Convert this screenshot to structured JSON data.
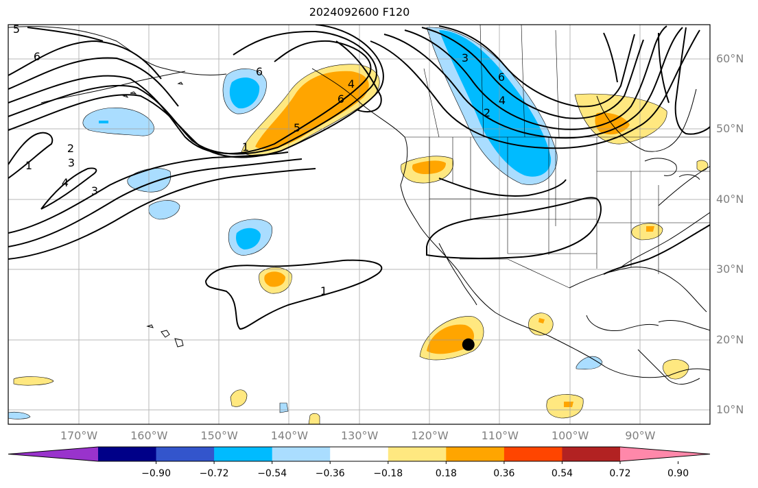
{
  "title": "2024092600 F120",
  "map": {
    "lat_labels": [
      {
        "text": "60°N",
        "lat": 60
      },
      {
        "text": "50°N",
        "lat": 50
      },
      {
        "text": "40°N",
        "lat": 40
      },
      {
        "text": "30°N",
        "lat": 30
      },
      {
        "text": "20°N",
        "lat": 20
      },
      {
        "text": "10°N",
        "lat": 10
      }
    ],
    "lon_labels": [
      {
        "text": "170°W",
        "lon": -170
      },
      {
        "text": "160°W",
        "lon": -160
      },
      {
        "text": "150°W",
        "lon": -150
      },
      {
        "text": "140°W",
        "lon": -140
      },
      {
        "text": "130°W",
        "lon": -130
      },
      {
        "text": "120°W",
        "lon": -120
      },
      {
        "text": "110°W",
        "lon": -110
      },
      {
        "text": "100°W",
        "lon": -100
      },
      {
        "text": "90°W",
        "lon": -90
      }
    ],
    "contour_labels": [
      "5",
      "6",
      "6",
      "2",
      "3",
      "1",
      "4",
      "3",
      "6",
      "4",
      "5",
      "1",
      "3",
      "6",
      "4",
      "2",
      "1"
    ],
    "marker": {
      "lon": -114.5,
      "lat": 19.3,
      "color": "#000000"
    },
    "grid": true
  },
  "colorbar": {
    "colors": [
      "#9933cc",
      "#000088",
      "#3355cc",
      "#00bbff",
      "#aaddff",
      "#ffffff",
      "#ffe880",
      "#ffa500",
      "#ff4500",
      "#b22222",
      "#ff88aa"
    ],
    "ticks": [
      "−0.90",
      "−0.72",
      "−0.54",
      "−0.36",
      "−0.18",
      "0.18",
      "0.36",
      "0.54",
      "0.72",
      "0.90"
    ]
  }
}
